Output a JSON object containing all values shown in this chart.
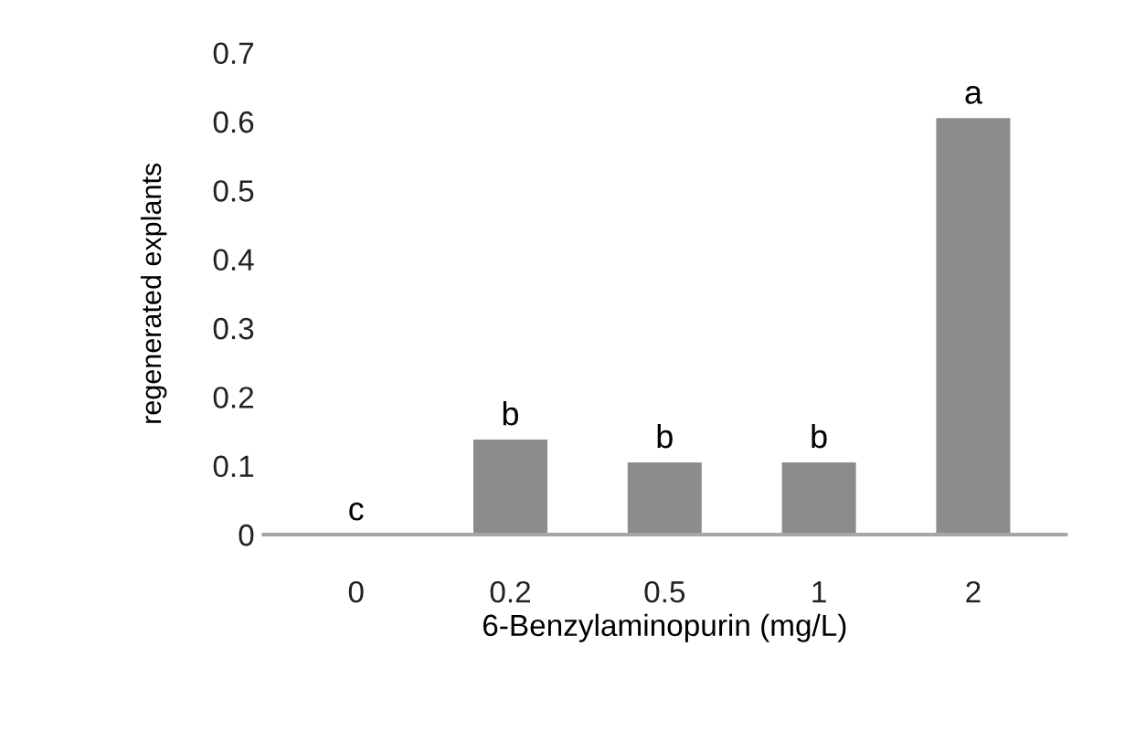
{
  "chart_data": {
    "type": "bar",
    "xlabel": "6-Benzylaminopurin (mg/L)",
    "ylabel": "regenerated explants",
    "categories": [
      "0",
      "0.2",
      "0.5",
      "1",
      "2"
    ],
    "values": [
      0,
      0.138,
      0.105,
      0.105,
      0.605
    ],
    "color": "#8c8c8c",
    "ylim": [
      0,
      0.7
    ],
    "yticks": [
      0,
      0.1,
      0.2,
      0.3,
      0.4,
      0.5,
      0.6,
      0.7
    ],
    "grid": false,
    "annotations": [
      {
        "text": "c",
        "x": "0",
        "y": 0
      },
      {
        "text": "b",
        "x": "0.2",
        "y": 0.138
      },
      {
        "text": "b",
        "x": "0.5",
        "y": 0.105
      },
      {
        "text": "b",
        "x": "1",
        "y": 0.105
      },
      {
        "text": "a",
        "x": "2",
        "y": 0.605
      }
    ]
  }
}
